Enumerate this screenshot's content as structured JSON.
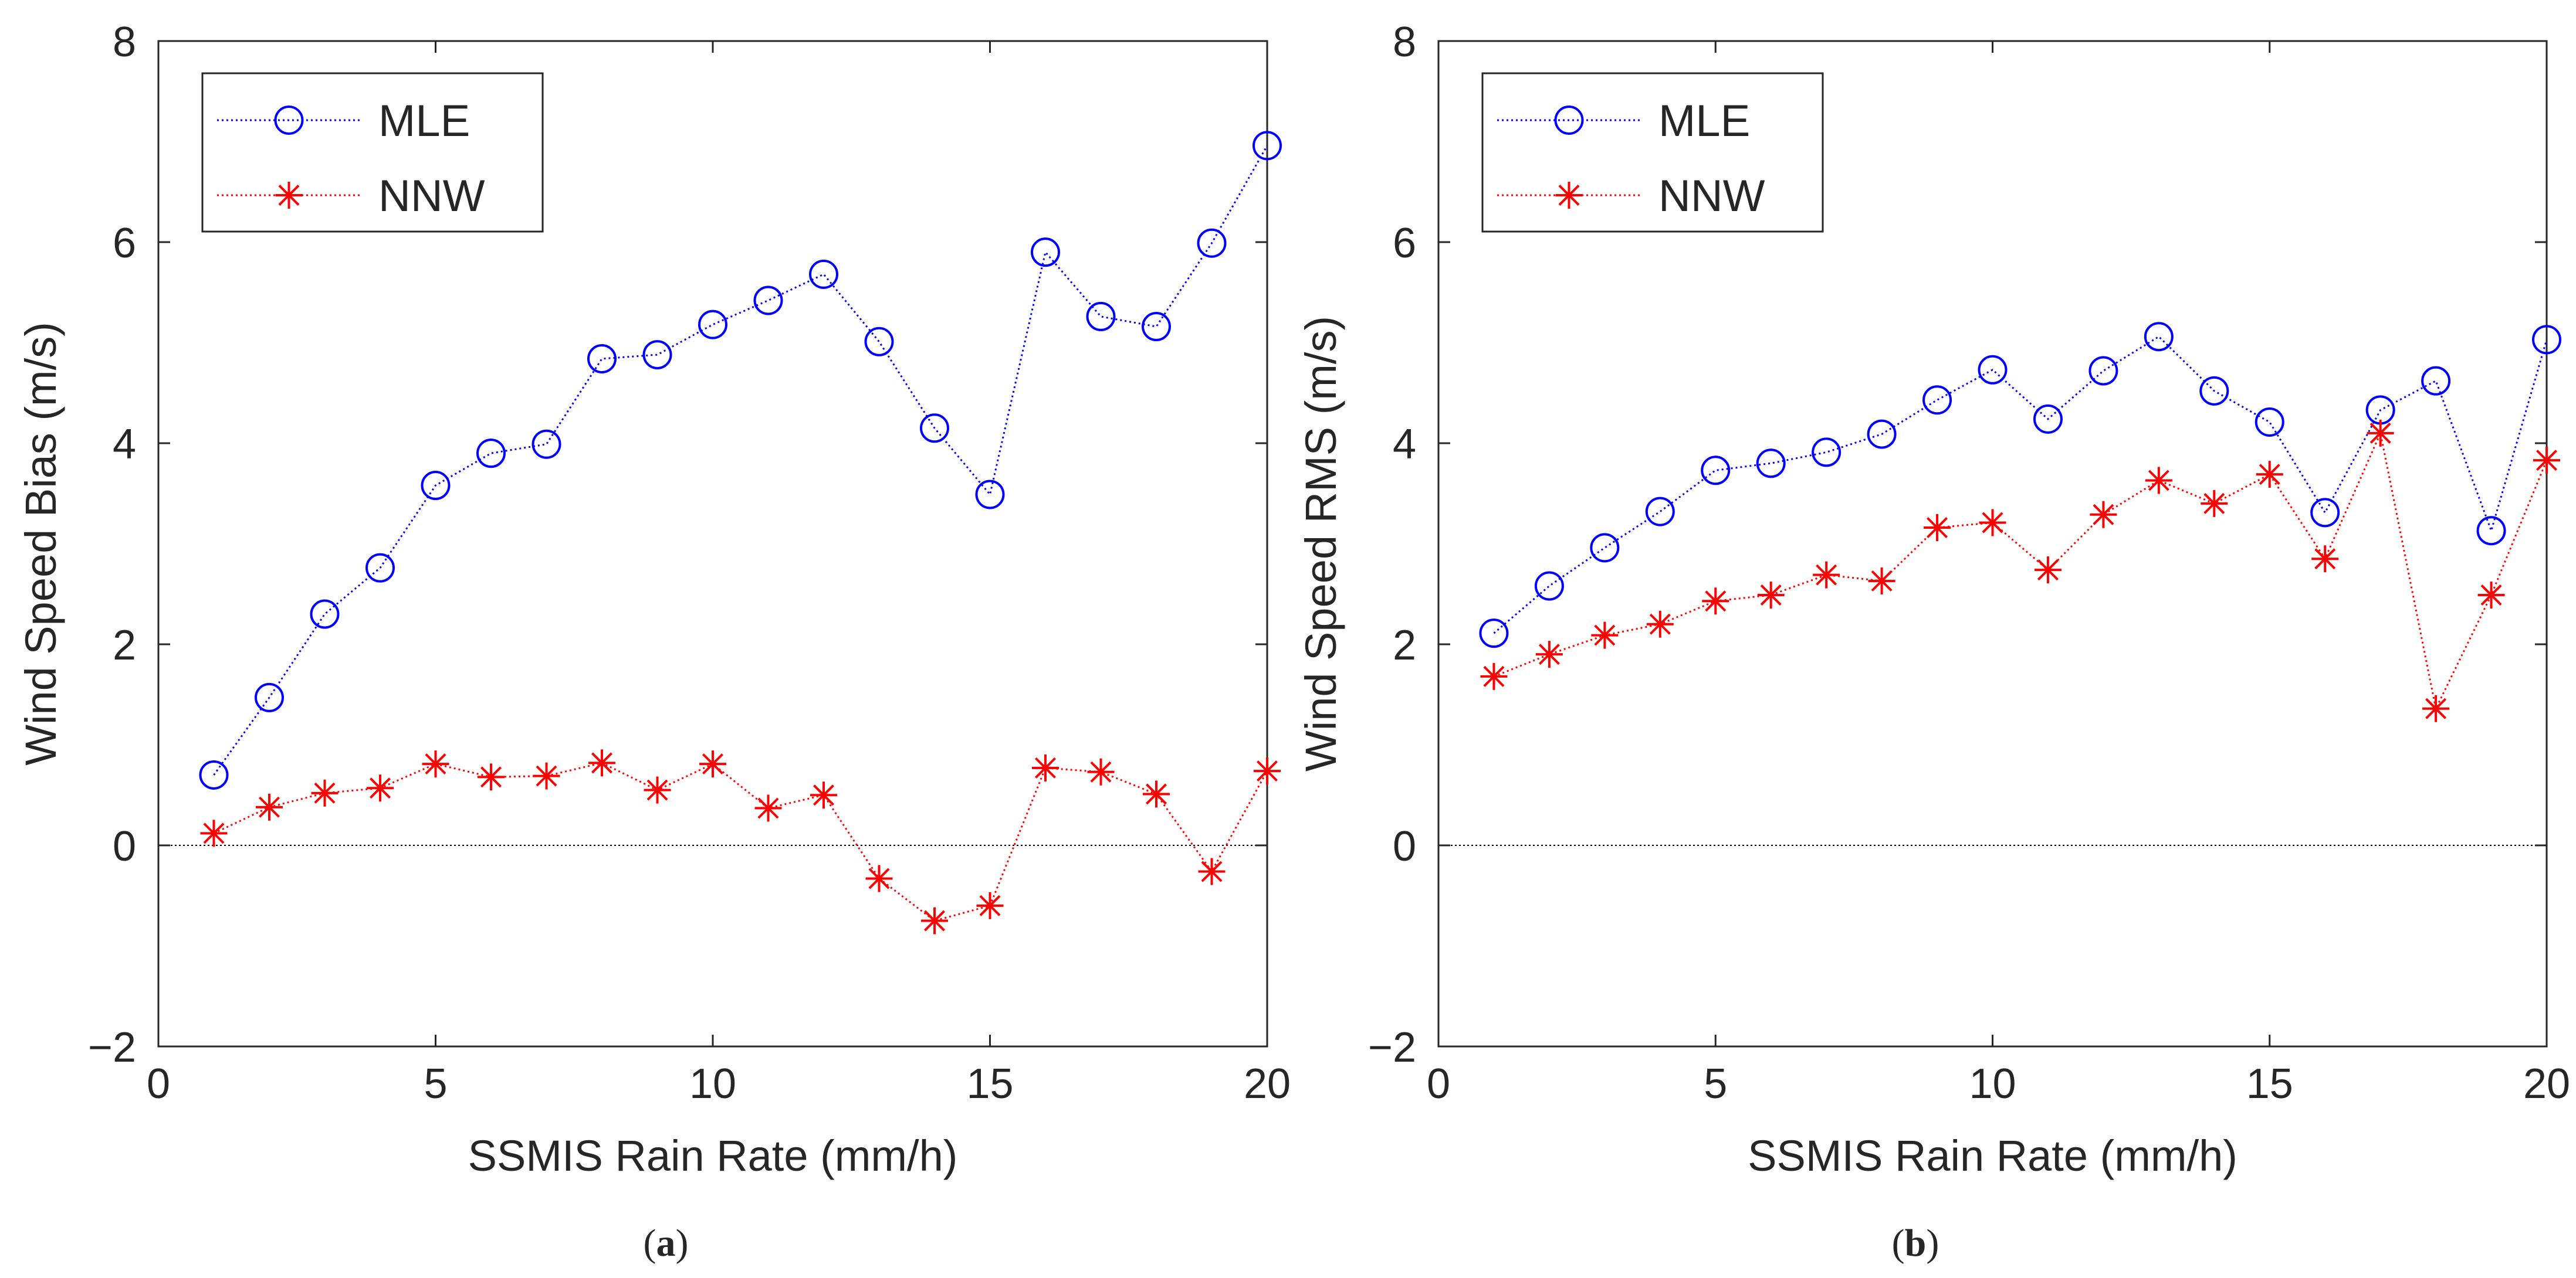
{
  "chart_data": [
    {
      "type": "line",
      "panel_label": "a",
      "xlabel": "SSMIS Rain Rate (mm/h)",
      "ylabel": "Wind Speed Bias  (m/s)",
      "xlim": [
        0,
        20
      ],
      "ylim": [
        -2,
        8
      ],
      "xticks": [
        0,
        5,
        10,
        15,
        20
      ],
      "yticks": [
        -2,
        0,
        2,
        4,
        6,
        8
      ],
      "grid": false,
      "legend_position": "top-left",
      "zero_line": true,
      "x": [
        1,
        2,
        3,
        4,
        5,
        6,
        7,
        8,
        9,
        10,
        11,
        12,
        13,
        14,
        15,
        16,
        17,
        18,
        19,
        20
      ],
      "series": [
        {
          "name": "MLE",
          "color": "#0000ff",
          "marker": "circle",
          "values": [
            0.7,
            1.47,
            2.3,
            2.76,
            3.58,
            3.9,
            3.99,
            4.84,
            4.88,
            5.18,
            5.42,
            5.68,
            5.01,
            4.15,
            3.49,
            5.9,
            5.26,
            5.16,
            5.99,
            6.96
          ]
        },
        {
          "name": "NNW",
          "color": "#ff0000",
          "marker": "asterisk",
          "values": [
            0.12,
            0.38,
            0.52,
            0.57,
            0.81,
            0.68,
            0.69,
            0.82,
            0.55,
            0.81,
            0.37,
            0.5,
            -0.33,
            -0.75,
            -0.6,
            0.77,
            0.73,
            0.51,
            -0.26,
            0.74
          ]
        }
      ]
    },
    {
      "type": "line",
      "panel_label": "b",
      "xlabel": "SSMIS Rain Rate (mm/h)",
      "ylabel": "Wind Speed RMS  (m/s)",
      "xlim": [
        0,
        20
      ],
      "ylim": [
        -2,
        8
      ],
      "xticks": [
        0,
        5,
        10,
        15,
        20
      ],
      "yticks": [
        -2,
        0,
        2,
        4,
        6,
        8
      ],
      "grid": false,
      "legend_position": "top-left",
      "zero_line": true,
      "x": [
        1,
        2,
        3,
        4,
        5,
        6,
        7,
        8,
        9,
        10,
        11,
        12,
        13,
        14,
        15,
        16,
        17,
        18,
        19,
        20
      ],
      "series": [
        {
          "name": "MLE",
          "color": "#0000ff",
          "marker": "circle",
          "values": [
            2.11,
            2.58,
            2.96,
            3.32,
            3.73,
            3.8,
            3.91,
            4.09,
            4.43,
            4.73,
            4.24,
            4.72,
            5.06,
            4.52,
            4.21,
            3.31,
            4.33,
            4.62,
            3.13,
            5.03
          ]
        },
        {
          "name": "NNW",
          "color": "#ff0000",
          "marker": "asterisk",
          "values": [
            1.68,
            1.9,
            2.09,
            2.2,
            2.43,
            2.49,
            2.69,
            2.63,
            3.16,
            3.21,
            2.74,
            3.29,
            3.63,
            3.4,
            3.69,
            2.85,
            4.1,
            1.36,
            2.49,
            3.83
          ]
        }
      ]
    }
  ]
}
